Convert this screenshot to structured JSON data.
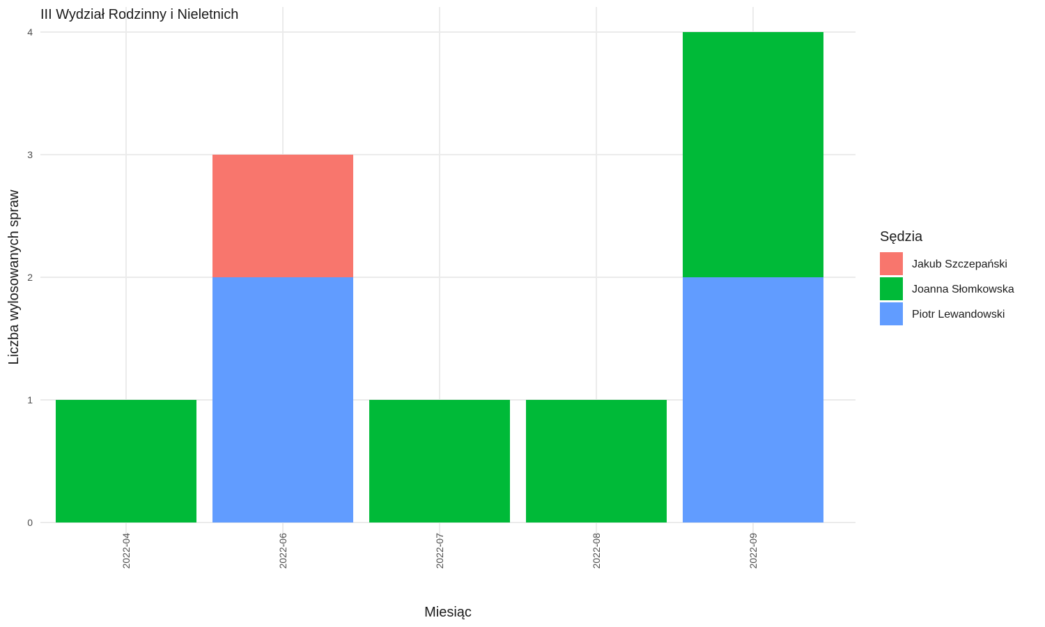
{
  "chart_data": {
    "type": "bar",
    "stacked": true,
    "title": "III Wydział Rodzinny i Nieletnich",
    "xlabel": "Miesiąc",
    "ylabel": "Liczba wylosowanych spraw",
    "categories": [
      "2022-04",
      "2022-06",
      "2022-07",
      "2022-08",
      "2022-09"
    ],
    "ylim": [
      0,
      4
    ],
    "yticks": [
      "0",
      "1",
      "2",
      "3",
      "4"
    ],
    "grid": true,
    "legend": {
      "title": "Sędzia",
      "position": "right"
    },
    "series": [
      {
        "name": "Jakub Szczepański",
        "color": "#F8766D",
        "values": [
          0,
          1,
          0,
          0,
          0
        ]
      },
      {
        "name": "Joanna Słomkowska",
        "color": "#00BA38",
        "values": [
          1,
          0,
          1,
          1,
          2
        ]
      },
      {
        "name": "Piotr Lewandowski",
        "color": "#619CFF",
        "values": [
          0,
          2,
          0,
          0,
          2
        ]
      }
    ]
  }
}
